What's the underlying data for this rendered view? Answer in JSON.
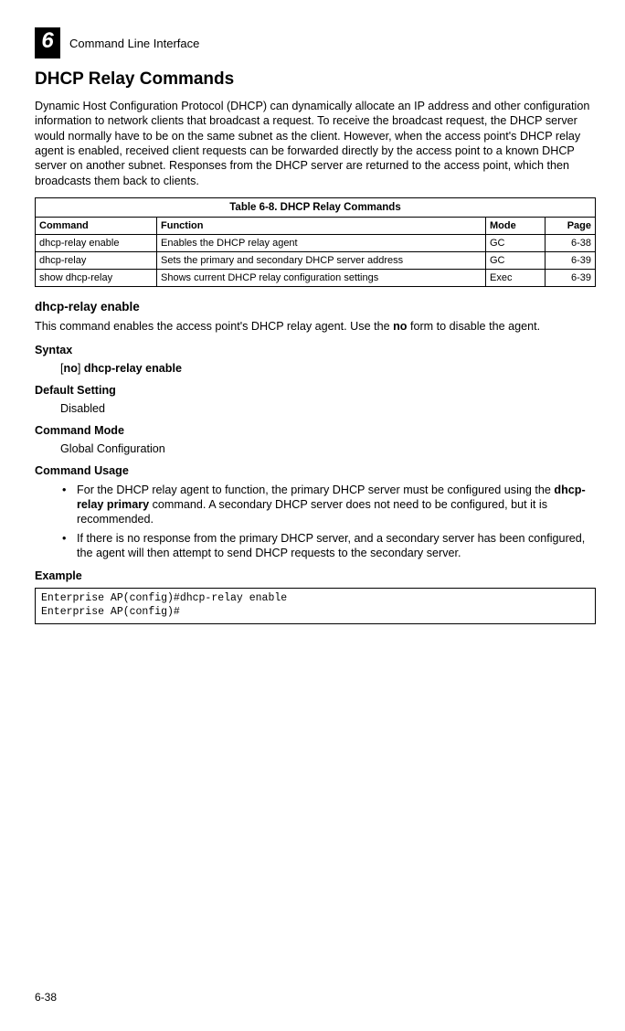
{
  "header": {
    "chapter_number": "6",
    "section_title": "Command Line Interface"
  },
  "page_footer": "6-38",
  "title": "DHCP Relay Commands",
  "intro": "Dynamic Host Configuration Protocol (DHCP) can dynamically allocate an IP address and other configuration information to network clients that broadcast a request. To receive the broadcast request, the DHCP server would normally have to be on the same subnet as the client. However, when the access point's DHCP relay agent is enabled, received client requests can be forwarded directly by the access point to a known DHCP server on another subnet. Responses from the DHCP server are returned to the access point, which then broadcasts them back to clients.",
  "table": {
    "caption": "Table 6-8. DHCP Relay Commands",
    "headers": {
      "c0": "Command",
      "c1": "Function",
      "c2": "Mode",
      "c3": "Page"
    },
    "rows": [
      {
        "cmd": "dhcp-relay enable",
        "func": "Enables the DHCP relay agent",
        "mode": "GC",
        "page": "6-38"
      },
      {
        "cmd": "dhcp-relay",
        "func": "Sets the primary and secondary DHCP server address",
        "mode": "GC",
        "page": "6-39"
      },
      {
        "cmd": "show dhcp-relay",
        "func": "Shows current DHCP relay configuration settings",
        "mode": "Exec",
        "page": "6-39"
      }
    ]
  },
  "command_detail": {
    "name": "dhcp-relay enable",
    "desc_pre": "This command enables the access point's DHCP relay agent. Use the ",
    "desc_bold": "no",
    "desc_post": " form to disable the agent.",
    "syntax_heading": "Syntax",
    "syntax_bracket_open": "[",
    "syntax_no": "no",
    "syntax_bracket_close": "] ",
    "syntax_cmd": "dhcp-relay enable",
    "default_heading": "Default Setting",
    "default_value": "Disabled",
    "mode_heading": "Command Mode",
    "mode_value": "Global Configuration",
    "usage_heading": "Command Usage",
    "usage_items": [
      {
        "pre": "For the DHCP relay agent to function, the primary DHCP server must be configured using the ",
        "bold": "dhcp-relay primary",
        "post": " command. A secondary DHCP server does not need to be configured, but it is recommended."
      },
      {
        "pre": "If there is no response from the primary DHCP server, and a secondary server has been configured, the agent will then attempt to send DHCP requests to the secondary server.",
        "bold": "",
        "post": ""
      }
    ],
    "example_heading": "Example",
    "example_lines": [
      "Enterprise AP(config)#dhcp-relay enable",
      "Enterprise AP(config)#"
    ]
  }
}
